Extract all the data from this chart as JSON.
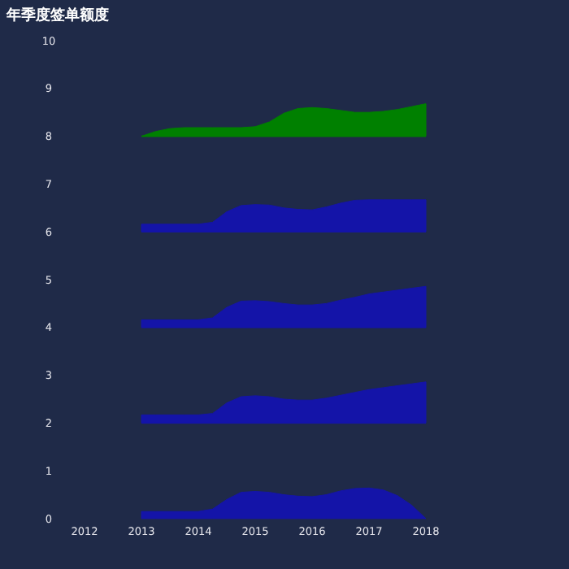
{
  "chart_data": {
    "type": "area",
    "title": "年季度签单额度",
    "x": [
      2013,
      2013.25,
      2013.5,
      2013.75,
      2014,
      2014.25,
      2014.5,
      2014.75,
      2015,
      2015.25,
      2015.5,
      2015.75,
      2016,
      2016.25,
      2016.5,
      2016.75,
      2017,
      2017.25,
      2017.5,
      2017.75,
      2018
    ],
    "series": [
      {
        "color": "#1414a8",
        "values": [
          0.15,
          0.15,
          0.15,
          0.15,
          0.15,
          0.2,
          0.4,
          0.55,
          0.57,
          0.55,
          0.5,
          0.47,
          0.46,
          0.5,
          0.58,
          0.63,
          0.64,
          0.6,
          0.48,
          0.28,
          0
        ]
      },
      {
        "color": "#1414a8",
        "values": [
          2.17,
          2.17,
          2.17,
          2.17,
          2.17,
          2.2,
          2.42,
          2.55,
          2.57,
          2.55,
          2.5,
          2.48,
          2.48,
          2.52,
          2.58,
          2.64,
          2.7,
          2.74,
          2.78,
          2.82,
          2.86
        ]
      },
      {
        "color": "#1414a8",
        "values": [
          4.16,
          4.16,
          4.16,
          4.16,
          4.16,
          4.2,
          4.42,
          4.55,
          4.56,
          4.54,
          4.5,
          4.47,
          4.47,
          4.5,
          4.57,
          4.63,
          4.7,
          4.74,
          4.78,
          4.82,
          4.86
        ]
      },
      {
        "color": "#1414a8",
        "values": [
          6.16,
          6.16,
          6.16,
          6.16,
          6.16,
          6.2,
          6.42,
          6.55,
          6.57,
          6.56,
          6.5,
          6.47,
          6.46,
          6.52,
          6.6,
          6.66,
          6.67,
          6.67,
          6.67,
          6.67,
          6.67
        ]
      },
      {
        "color": "#008000",
        "values": [
          8,
          8.1,
          8.16,
          8.18,
          8.18,
          8.18,
          8.18,
          8.18,
          8.2,
          8.3,
          8.48,
          8.58,
          8.6,
          8.58,
          8.54,
          8.5,
          8.5,
          8.52,
          8.56,
          8.62,
          8.68
        ]
      }
    ],
    "ref_lines": [
      {
        "axis": "y",
        "value": 2,
        "color": "#1414a8"
      },
      {
        "axis": "y",
        "value": 4,
        "color": "#1414a8"
      },
      {
        "axis": "y",
        "value": 6,
        "color": "#1414a8"
      },
      {
        "axis": "y",
        "value": 8,
        "color": "#008000"
      }
    ],
    "xlim": [
      2012,
      2018
    ],
    "xticks": [
      2012,
      2013,
      2014,
      2015,
      2016,
      2017,
      2018
    ],
    "ylim": [
      0,
      10
    ],
    "yticks": [
      0,
      1,
      2,
      3,
      4,
      5,
      6,
      7,
      8,
      9,
      10
    ]
  }
}
